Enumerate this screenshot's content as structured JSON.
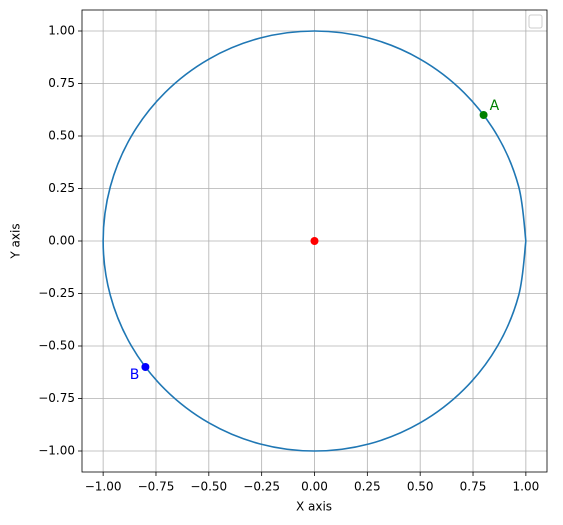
{
  "chart_data": {
    "type": "line",
    "x_label": "X axis",
    "y_label": "Y axis",
    "xlim": [
      -1.1,
      1.1
    ],
    "ylim": [
      -1.1,
      1.1
    ],
    "grid": true,
    "xticks": [
      {
        "value": -1,
        "label": "−1.00"
      },
      {
        "value": -0.75,
        "label": "−0.75"
      },
      {
        "value": -0.5,
        "label": "−0.50"
      },
      {
        "value": -0.25,
        "label": "−0.25"
      },
      {
        "value": 0,
        "label": "0.00"
      },
      {
        "value": 0.25,
        "label": "0.25"
      },
      {
        "value": 0.5,
        "label": "0.50"
      },
      {
        "value": 0.75,
        "label": "0.75"
      },
      {
        "value": 1,
        "label": "1.00"
      }
    ],
    "yticks": [
      {
        "value": -1,
        "label": "−1.00"
      },
      {
        "value": -0.75,
        "label": "−0.75"
      },
      {
        "value": -0.5,
        "label": "−0.50"
      },
      {
        "value": -0.25,
        "label": "−0.25"
      },
      {
        "value": 0,
        "label": "0.00"
      },
      {
        "value": 0.25,
        "label": "0.25"
      },
      {
        "value": 0.5,
        "label": "0.50"
      },
      {
        "value": 0.75,
        "label": "0.75"
      },
      {
        "value": 1,
        "label": "1.00"
      }
    ],
    "series": [
      {
        "color": "#1f77b4",
        "x": [
          1,
          0.966,
          0.866,
          0.707,
          0.5,
          0.259,
          0,
          -0.259,
          -0.5,
          -0.707,
          -0.866,
          -0.966,
          -1,
          -0.966,
          -0.866,
          -0.707,
          -0.5,
          -0.259,
          0,
          0.259,
          0.5,
          0.707,
          0.866,
          0.966,
          1
        ],
        "values": [
          0,
          0.259,
          0.5,
          0.707,
          0.866,
          0.966,
          1,
          0.966,
          0.866,
          0.707,
          0.5,
          0.259,
          0,
          -0.259,
          -0.5,
          -0.707,
          -0.866,
          -0.966,
          -1,
          -0.966,
          -0.866,
          -0.707,
          -0.5,
          -0.259,
          0
        ]
      }
    ],
    "points": [
      {
        "x": 0,
        "y": 0,
        "color": "#ff0000"
      },
      {
        "x": 0.8,
        "y": 0.6,
        "color": "#008000",
        "label": "A"
      },
      {
        "x": -0.8,
        "y": -0.6,
        "color": "#0000ff",
        "label": "B"
      }
    ]
  }
}
